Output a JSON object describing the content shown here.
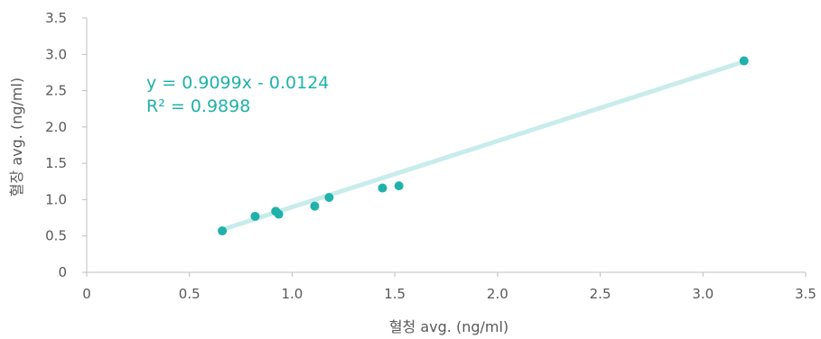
{
  "chart_data": {
    "type": "scatter",
    "xlabel": "혈청 avg. (ng/ml)",
    "ylabel": "혈장 avg. (ng/ml)",
    "xlim": [
      0,
      3.5
    ],
    "ylim": [
      0,
      3.5
    ],
    "x_ticks": [
      "0",
      "0.5",
      "1.0",
      "1.5",
      "2.0",
      "2.5",
      "3.0",
      "3.5"
    ],
    "y_ticks": [
      "0",
      "0.5",
      "1.0",
      "1.5",
      "2.0",
      "2.5",
      "3.0",
      "3.5"
    ],
    "grid": false,
    "series": [
      {
        "x": [
          0.66,
          0.82,
          0.92,
          0.935,
          1.11,
          1.18,
          1.44,
          1.52,
          3.2
        ],
        "y": [
          0.57,
          0.77,
          0.84,
          0.8,
          0.91,
          1.03,
          1.16,
          1.19,
          2.91
        ]
      }
    ],
    "trendline": {
      "type": "linear",
      "slope": 0.9099,
      "intercept": -0.0124,
      "x_range": [
        0.66,
        3.2
      ],
      "equation": "y = 0.9099x - 0.0124",
      "r_squared_label": "R² = 0.9898"
    },
    "colors": {
      "marker": "#20b2aa",
      "trendline": "#c8ecec",
      "axis": "#bfbfbf",
      "text": "#595959",
      "equation": "#20b2aa"
    }
  }
}
